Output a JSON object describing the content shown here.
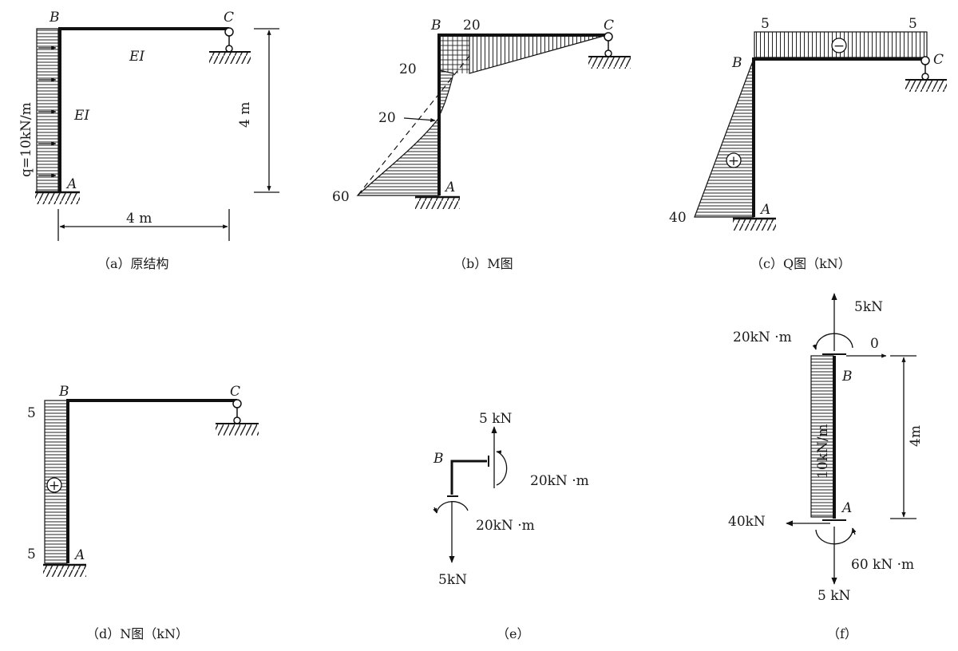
{
  "panel_a": {
    "caption": "（a）原结构",
    "label_b": "B",
    "label_c": "C",
    "label_a": "A",
    "ei_beam": "EI",
    "ei_column": "EI",
    "load": "q=10kN/m",
    "height_dim": "4 m",
    "span_dim": "4 m"
  },
  "panel_b": {
    "caption": "（b）M图",
    "label_b": "B",
    "label_c": "C",
    "label_a": "A",
    "val_top": "20",
    "val_left_top": "20",
    "val_mid": "20",
    "val_base": "60"
  },
  "panel_c": {
    "caption": "（c）Q图（kN）",
    "label_b": "B",
    "label_c": "C",
    "label_a": "A",
    "val_left": "5",
    "val_right": "5",
    "val_base": "40",
    "sign_beam": "−",
    "sign_column": "+"
  },
  "panel_d": {
    "caption": "（d）N图（kN）",
    "label_b": "B",
    "label_c": "C",
    "label_a": "A",
    "val_top": "5",
    "val_bottom": "5",
    "sign": "+"
  },
  "panel_e": {
    "caption": "（e）",
    "label_b": "B",
    "force_up": "5 kN",
    "moment_right": "20kN ·m",
    "moment_left": "20kN ·m",
    "force_down": "5kN"
  },
  "panel_f": {
    "caption": "（f）",
    "label_b": "B",
    "label_a": "A",
    "force_top": "5kN",
    "moment_top": "20kN ·m",
    "horiz_top": "0",
    "load": "10kN/m",
    "height_dim": "4m",
    "force_left": "40kN",
    "moment_bottom": "60 kN ·m",
    "force_bottom": "5 kN"
  }
}
